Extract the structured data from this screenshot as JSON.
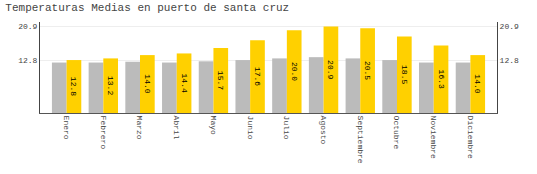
{
  "chart_data": {
    "type": "bar",
    "title": "Temperaturas Medias en puerto de santa cruz",
    "categories": [
      "Enero",
      "Febrero",
      "Marzo",
      "Abril",
      "Mayo",
      "Junio",
      "Julio",
      "Agosto",
      "Septiembre",
      "Octubre",
      "Noviembre",
      "Diciembre"
    ],
    "series": [
      {
        "color": "#BBBBBB",
        "values": [
          12.2,
          12.2,
          12.4,
          12.2,
          12.5,
          12.8,
          13.2,
          13.5,
          13.2,
          12.8,
          12.2,
          12.2
        ]
      },
      {
        "color": "#FFD000",
        "values": [
          12.8,
          13.2,
          14.0,
          14.4,
          15.7,
          17.6,
          20.0,
          20.9,
          20.5,
          18.5,
          16.3,
          14.0
        ],
        "value_labels": [
          "12.8",
          "13.2",
          "14.0",
          "14.4",
          "15.7",
          "17.6",
          "20.0",
          "20.9",
          "20.5",
          "18.5",
          "16.3",
          "14.0"
        ],
        "data_labels": true
      }
    ],
    "ylim": [
      0,
      22.0
    ],
    "yticks": [
      12.8,
      20.9
    ],
    "y2lim": [
      0,
      22.0
    ],
    "y2ticks": [
      12.8,
      20.9
    ],
    "grid": true
  }
}
